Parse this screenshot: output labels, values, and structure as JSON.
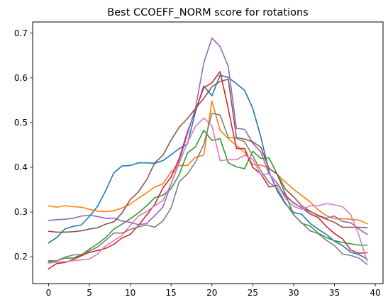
{
  "chart_data": {
    "type": "line",
    "title": "Best CCOEFF_NORM score for rotations",
    "xlabel": "",
    "ylabel": "",
    "xlim": [
      -1.95,
      40.95
    ],
    "ylim": [
      0.14,
      0.725
    ],
    "xticks": [
      0,
      5,
      10,
      15,
      20,
      25,
      30,
      35,
      40
    ],
    "yticks": [
      0.2,
      0.3,
      0.4,
      0.5,
      0.6,
      0.7
    ],
    "xtick_labels": [
      "0",
      "5",
      "10",
      "15",
      "20",
      "25",
      "30",
      "35",
      "40"
    ],
    "ytick_labels": [
      "0.2",
      "0.3",
      "0.4",
      "0.5",
      "0.6",
      "0.7"
    ],
    "grid": false,
    "legend": "none",
    "x": [
      0,
      1,
      2,
      3,
      4,
      5,
      6,
      7,
      8,
      9,
      10,
      11,
      12,
      13,
      14,
      15,
      16,
      17,
      18,
      19,
      20,
      21,
      22,
      23,
      24,
      25,
      26,
      27,
      28,
      29,
      30,
      31,
      32,
      33,
      34,
      35,
      36,
      37,
      38,
      39
    ],
    "series": [
      {
        "color": "#1f77b4",
        "values": [
          0.231,
          0.243,
          0.262,
          0.268,
          0.271,
          0.29,
          0.313,
          0.348,
          0.388,
          0.403,
          0.404,
          0.41,
          0.41,
          0.409,
          0.415,
          0.428,
          0.442,
          0.452,
          0.525,
          0.582,
          0.56,
          0.606,
          0.601,
          0.587,
          0.572,
          0.532,
          0.467,
          0.39,
          0.347,
          0.318,
          0.299,
          0.295,
          0.275,
          0.262,
          0.25,
          0.235,
          0.225,
          0.21,
          0.205,
          0.195
        ]
      },
      {
        "color": "#ff7f0e",
        "values": [
          0.314,
          0.311,
          0.314,
          0.312,
          0.311,
          0.306,
          0.302,
          0.301,
          0.303,
          0.309,
          0.318,
          0.331,
          0.343,
          0.356,
          0.363,
          0.39,
          0.404,
          0.404,
          0.423,
          0.427,
          0.548,
          0.483,
          0.464,
          0.449,
          0.433,
          0.406,
          0.405,
          0.398,
          0.384,
          0.367,
          0.351,
          0.337,
          0.323,
          0.305,
          0.292,
          0.285,
          0.285,
          0.284,
          0.282,
          0.274
        ]
      },
      {
        "color": "#2ca02c",
        "values": [
          0.191,
          0.191,
          0.197,
          0.197,
          0.204,
          0.217,
          0.229,
          0.243,
          0.262,
          0.273,
          0.285,
          0.298,
          0.314,
          0.332,
          0.338,
          0.352,
          0.384,
          0.432,
          0.446,
          0.483,
          0.46,
          0.464,
          0.41,
          0.401,
          0.397,
          0.436,
          0.42,
          0.421,
          0.384,
          0.34,
          0.294,
          0.275,
          0.269,
          0.253,
          0.243,
          0.236,
          0.232,
          0.229,
          0.226,
          0.226
        ]
      },
      {
        "color": "#d62728",
        "values": [
          0.173,
          0.185,
          0.187,
          0.194,
          0.202,
          0.21,
          0.214,
          0.219,
          0.228,
          0.242,
          0.25,
          0.27,
          0.293,
          0.317,
          0.354,
          0.378,
          0.42,
          0.479,
          0.528,
          0.578,
          0.589,
          0.614,
          0.531,
          0.442,
          0.442,
          0.4,
          0.385,
          0.356,
          0.36,
          0.338,
          0.32,
          0.31,
          0.296,
          0.288,
          0.268,
          0.252,
          0.24,
          0.215,
          0.208,
          0.209
        ]
      },
      {
        "color": "#9467bd",
        "values": [
          0.281,
          0.283,
          0.284,
          0.286,
          0.291,
          0.293,
          0.29,
          0.286,
          0.286,
          0.28,
          0.277,
          0.272,
          0.274,
          0.292,
          0.311,
          0.362,
          0.414,
          0.474,
          0.533,
          0.633,
          0.689,
          0.67,
          0.626,
          0.487,
          0.485,
          0.454,
          0.434,
          0.385,
          0.365,
          0.335,
          0.321,
          0.309,
          0.301,
          0.293,
          0.286,
          0.291,
          0.279,
          0.276,
          0.262,
          0.25
        ]
      },
      {
        "color": "#8c564b",
        "values": [
          0.257,
          0.255,
          0.255,
          0.256,
          0.258,
          0.262,
          0.265,
          0.273,
          0.278,
          0.298,
          0.328,
          0.345,
          0.372,
          0.41,
          0.427,
          0.461,
          0.49,
          0.509,
          0.532,
          0.554,
          0.58,
          0.592,
          0.597,
          0.467,
          0.463,
          0.457,
          0.445,
          0.397,
          0.385,
          0.351,
          0.334,
          0.314,
          0.302,
          0.292,
          0.284,
          0.277,
          0.266,
          0.266,
          0.266,
          0.265
        ]
      },
      {
        "color": "#e377c2",
        "values": [
          0.186,
          0.188,
          0.189,
          0.191,
          0.193,
          0.195,
          0.206,
          0.225,
          0.236,
          0.248,
          0.27,
          0.291,
          0.301,
          0.314,
          0.326,
          0.363,
          0.41,
          0.455,
          0.492,
          0.51,
          0.493,
          0.415,
          0.417,
          0.417,
          0.427,
          0.418,
          0.383,
          0.386,
          0.363,
          0.33,
          0.313,
          0.306,
          0.314,
          0.314,
          0.319,
          0.316,
          0.312,
          0.294,
          0.248,
          0.19
        ]
      },
      {
        "color": "#7f7f7f",
        "values": [
          0.188,
          0.191,
          0.199,
          0.204,
          0.205,
          0.213,
          0.222,
          0.237,
          0.253,
          0.253,
          0.261,
          0.267,
          0.271,
          0.266,
          0.28,
          0.309,
          0.368,
          0.385,
          0.412,
          0.451,
          0.521,
          0.517,
          0.467,
          0.465,
          0.457,
          0.426,
          0.392,
          0.366,
          0.353,
          0.32,
          0.294,
          0.276,
          0.258,
          0.252,
          0.237,
          0.225,
          0.206,
          0.203,
          0.197,
          0.183
        ]
      }
    ]
  }
}
